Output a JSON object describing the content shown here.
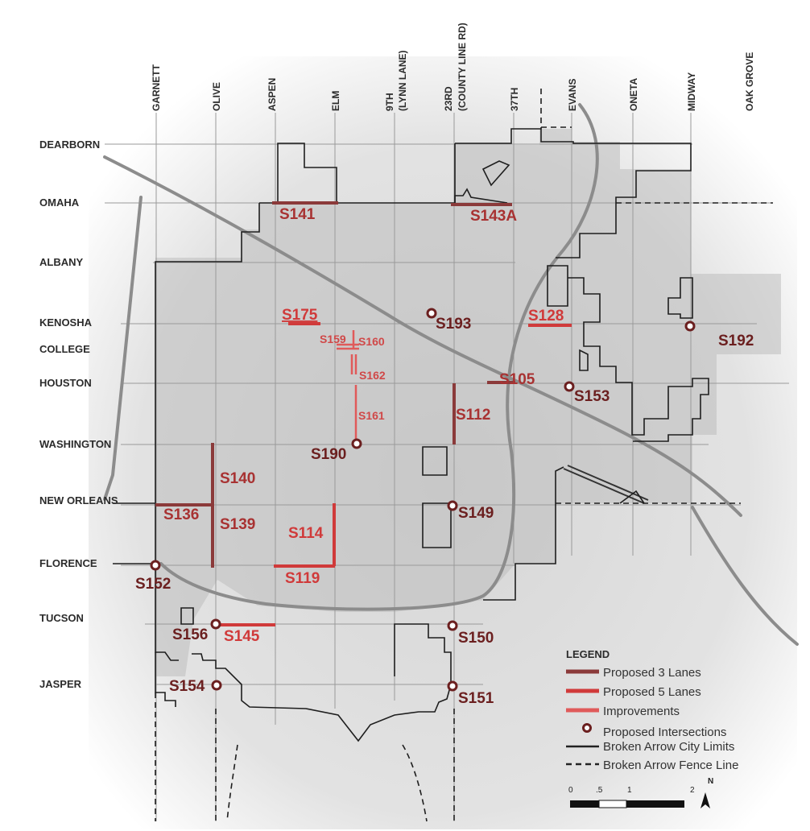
{
  "streets_horizontal": [
    {
      "label": "DEARBORN"
    },
    {
      "label": "OMAHA"
    },
    {
      "label": "ALBANY"
    },
    {
      "label": "KENOSHA"
    },
    {
      "label": "COLLEGE"
    },
    {
      "label": "HOUSTON"
    },
    {
      "label": "WASHINGTON"
    },
    {
      "label": "NEW ORLEANS"
    },
    {
      "label": "FLORENCE"
    },
    {
      "label": "TUCSON"
    },
    {
      "label": "JASPER"
    }
  ],
  "streets_vertical": [
    {
      "label": "GARNETT"
    },
    {
      "label": "OLIVE"
    },
    {
      "label": "ASPEN"
    },
    {
      "label": "ELM"
    },
    {
      "label": "9TH"
    },
    {
      "label": "(LYNN LANE)"
    },
    {
      "label": "23RD"
    },
    {
      "label": "(COUNTY LINE RD)"
    },
    {
      "label": "37TH"
    },
    {
      "label": "EVANS"
    },
    {
      "label": "ONETA"
    },
    {
      "label": "MIDWAY"
    },
    {
      "label": "OAK GROVE"
    }
  ],
  "projects": [
    {
      "id": "S141",
      "type": "3 lanes"
    },
    {
      "id": "S143A",
      "type": "3 lanes"
    },
    {
      "id": "S175",
      "type": "5 lanes"
    },
    {
      "id": "S193",
      "type": "intersection"
    },
    {
      "id": "S128",
      "type": "5 lanes"
    },
    {
      "id": "S192",
      "type": "intersection"
    },
    {
      "id": "S159",
      "type": "improvement"
    },
    {
      "id": "S160",
      "type": "improvement"
    },
    {
      "id": "S162",
      "type": "improvement"
    },
    {
      "id": "S105",
      "type": "3 lanes"
    },
    {
      "id": "S153",
      "type": "intersection"
    },
    {
      "id": "S161",
      "type": "improvement"
    },
    {
      "id": "S112",
      "type": "3 lanes"
    },
    {
      "id": "S190",
      "type": "intersection"
    },
    {
      "id": "S140",
      "type": "3 lanes"
    },
    {
      "id": "S136",
      "type": "3 lanes"
    },
    {
      "id": "S139",
      "type": "3 lanes"
    },
    {
      "id": "S149",
      "type": "intersection"
    },
    {
      "id": "S114",
      "type": "5 lanes"
    },
    {
      "id": "S119",
      "type": "5 lanes"
    },
    {
      "id": "S152",
      "type": "intersection"
    },
    {
      "id": "S156",
      "type": "intersection"
    },
    {
      "id": "S145",
      "type": "5 lanes"
    },
    {
      "id": "S150",
      "type": "intersection"
    },
    {
      "id": "S154",
      "type": "intersection"
    },
    {
      "id": "S151",
      "type": "intersection"
    }
  ],
  "legend": {
    "title": "LEGEND",
    "items": [
      {
        "label": "Proposed 3 Lanes",
        "color": "#8b3a3a"
      },
      {
        "label": "Proposed 5 Lanes",
        "color": "#d03a3a"
      },
      {
        "label": "Improvements",
        "color": "#e05a5a"
      },
      {
        "label": "Proposed Intersections",
        "color": "#6b1f1f"
      },
      {
        "label": "Broken Arrow City Limits",
        "color": "#222222"
      },
      {
        "label": "Broken Arrow Fence Line",
        "color": "#222222"
      }
    ]
  },
  "scale": {
    "ticks": [
      "0",
      ".5",
      "1",
      "2"
    ]
  },
  "north": {
    "label": "N"
  },
  "colors": {
    "three_lane": "#8b3a3a",
    "five_lane": "#d03a3a",
    "improvement": "#e05a5a",
    "intersection": "#6b1f1f"
  }
}
